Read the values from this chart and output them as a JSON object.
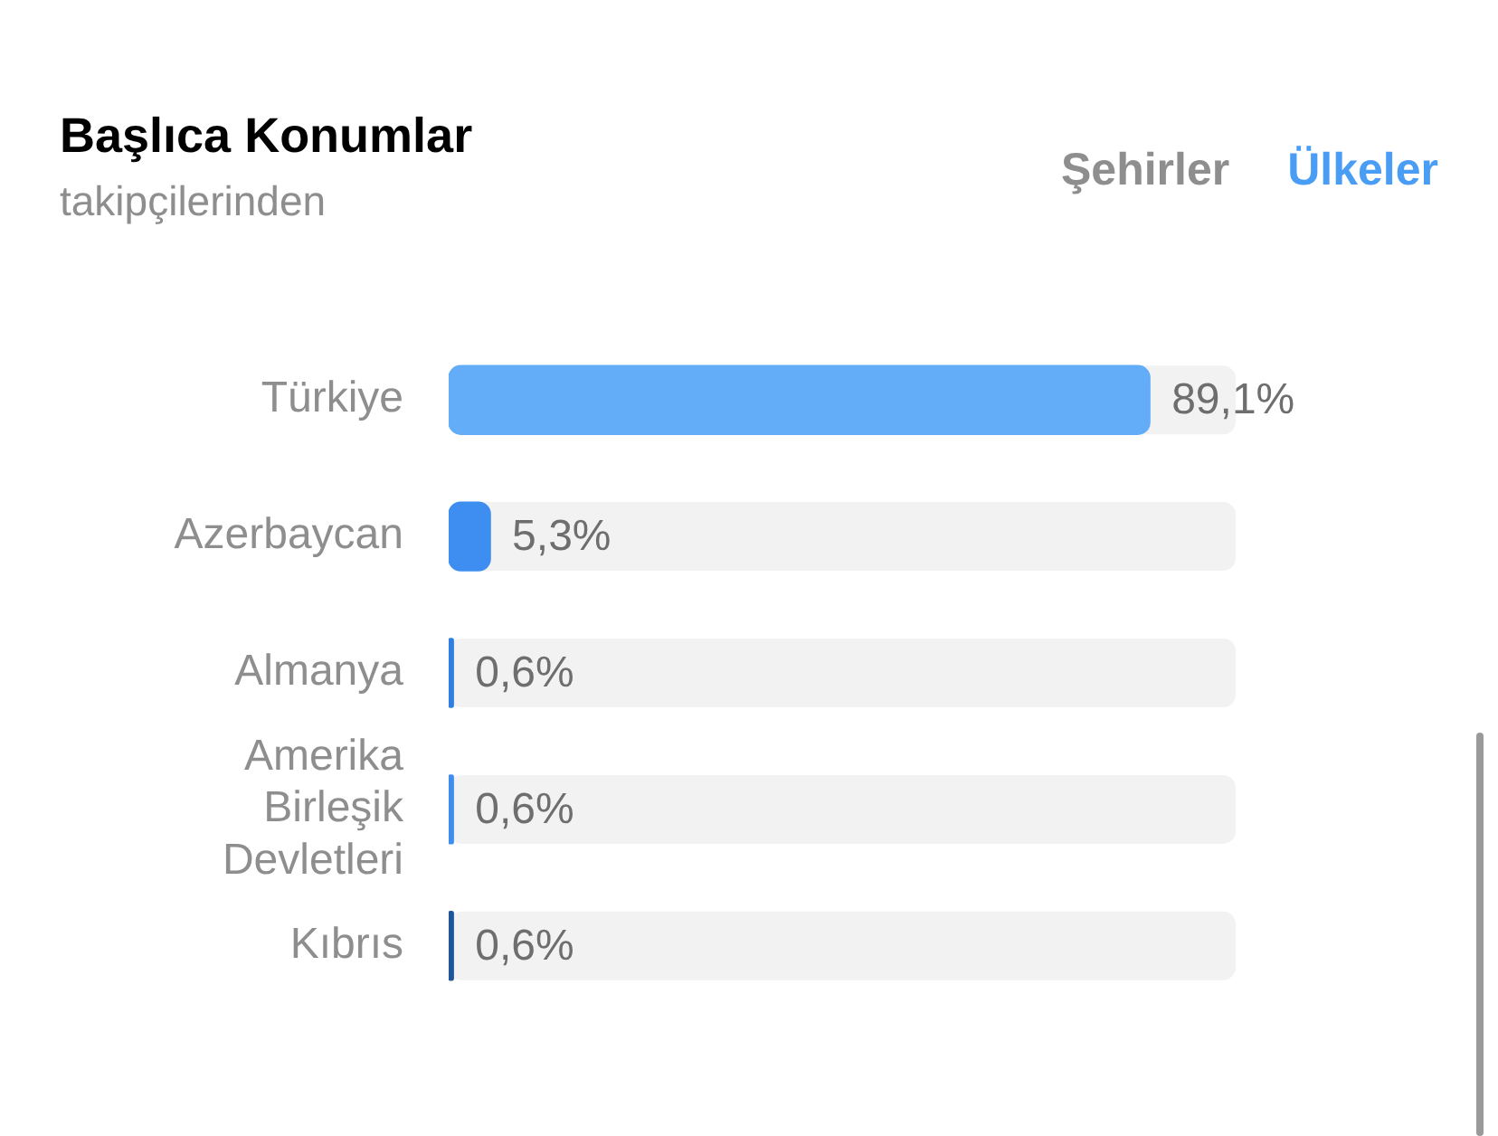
{
  "chart_data": {
    "type": "bar",
    "orientation": "horizontal",
    "title": "Başlıca Konumlar",
    "subtitle": "takipçilerinden",
    "annotations": [
      "Şehirler",
      "Ülkeler"
    ],
    "categories": [
      "Türkiye",
      "Azerbaycan",
      "Almanya",
      "Amerika Birleşik Devletleri",
      "Kıbrıs"
    ],
    "values": [
      89.1,
      5.3,
      0.6,
      0.6,
      0.6
    ],
    "value_labels": [
      "89,1%",
      "5,3%",
      "0,6%",
      "0,6%",
      "0,6%"
    ],
    "colors": [
      "#63acf7",
      "#3d8ef0",
      "#2f7fe0",
      "#3f8eee",
      "#1f5599"
    ],
    "xlim": [
      0,
      100
    ],
    "tick_labels": "y",
    "legend": false
  }
}
